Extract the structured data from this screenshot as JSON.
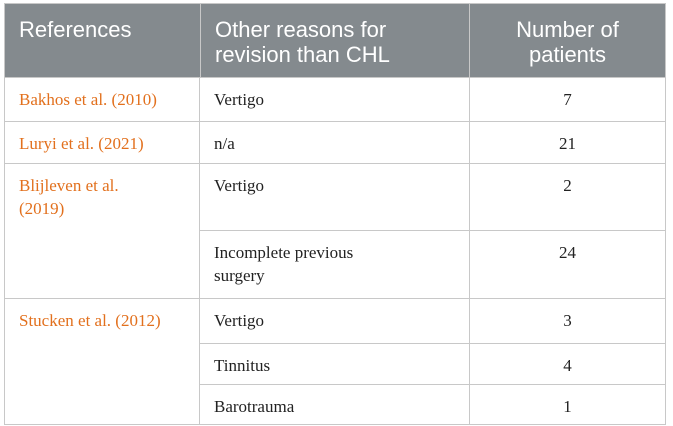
{
  "headers": {
    "references": "References",
    "other_reasons": "Other reasons for\nrevision than CHL",
    "number": "Number of\npatients"
  },
  "groups": [
    {
      "reference": "Bakhos et al. (2010)",
      "rows": [
        {
          "reason": "Vertigo",
          "number": "7"
        }
      ]
    },
    {
      "reference": "Luryi et al. (2021)",
      "rows": [
        {
          "reason": "n/a",
          "number": "21"
        }
      ]
    },
    {
      "reference": "Blijleven et al.\n(2019)",
      "rows": [
        {
          "reason": "Vertigo",
          "number": "2"
        },
        {
          "reason": "Incomplete previous\nsurgery",
          "number": "24"
        }
      ]
    },
    {
      "reference": "Stucken et al. (2012)",
      "rows": [
        {
          "reason": "Vertigo",
          "number": "3"
        },
        {
          "reason": "Tinnitus",
          "number": "4"
        },
        {
          "reason": "Barotrauma",
          "number": "1"
        }
      ]
    }
  ],
  "colors": {
    "header_bg": "#848a8e",
    "reference_text": "#e2701d",
    "border": "#c8c8c8"
  }
}
